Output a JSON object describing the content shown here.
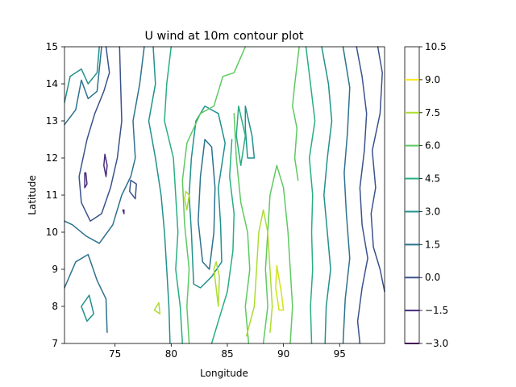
{
  "chart_data": {
    "type": "contour",
    "title": "U wind at 10m contour plot",
    "xlabel": "Longitude",
    "ylabel": "Latitude",
    "xlim": [
      70.5,
      99.0
    ],
    "ylim": [
      7,
      15
    ],
    "xticks": [
      "75",
      "80",
      "85",
      "90",
      "95"
    ],
    "yticks": [
      "7",
      "8",
      "9",
      "10",
      "11",
      "12",
      "13",
      "14",
      "15"
    ],
    "colorbar": {
      "levels": [
        -3.0,
        -1.5,
        0.0,
        1.5,
        3.0,
        4.5,
        6.0,
        7.5,
        9.0,
        10.5
      ],
      "labels": [
        "−3.0",
        "−1.5",
        "0.0",
        "1.5",
        "3.0",
        "4.5",
        "6.0",
        "7.5",
        "9.0",
        "10.5"
      ],
      "colors": [
        "#440154",
        "#472d7b",
        "#3b528b",
        "#2c728e",
        "#21918c",
        "#28ae80",
        "#5ec962",
        "#addc30",
        "#fde725"
      ]
    },
    "contours": [
      {
        "level": -1.5,
        "color": "#472d7b",
        "points": [
          [
            74.1,
            12.1
          ],
          [
            74.3,
            11.8
          ],
          [
            74.2,
            11.5
          ],
          [
            74.0,
            11.8
          ],
          [
            74.1,
            12.1
          ]
        ]
      },
      {
        "level": -1.5,
        "color": "#472d7b",
        "points": [
          [
            72.4,
            11.6
          ],
          [
            72.5,
            11.3
          ],
          [
            72.3,
            11.2
          ],
          [
            72.3,
            11.6
          ],
          [
            72.4,
            11.6
          ]
        ]
      },
      {
        "level": -1.5,
        "color": "#472d7b",
        "points": [
          [
            75.7,
            10.6
          ],
          [
            75.8,
            10.5
          ],
          [
            75.8,
            10.6
          ]
        ]
      },
      {
        "level": 0.0,
        "color": "#3b528b",
        "points": [
          [
            74.2,
            15.0
          ],
          [
            74.5,
            14.3
          ],
          [
            74.0,
            13.8
          ],
          [
            73.2,
            13.2
          ],
          [
            72.5,
            12.5
          ],
          [
            71.8,
            11.5
          ],
          [
            72.0,
            10.8
          ],
          [
            72.8,
            10.3
          ],
          [
            73.8,
            10.5
          ],
          [
            74.6,
            11.2
          ],
          [
            75.2,
            12.0
          ],
          [
            75.6,
            13.0
          ],
          [
            75.5,
            14.0
          ],
          [
            75.4,
            15.0
          ]
        ]
      },
      {
        "level": 0.0,
        "color": "#3b528b",
        "points": [
          [
            96.5,
            15.0
          ],
          [
            97.0,
            14.2
          ],
          [
            97.4,
            13.2
          ],
          [
            97.2,
            12.2
          ],
          [
            96.8,
            11.2
          ],
          [
            97.0,
            10.2
          ],
          [
            97.5,
            9.3
          ],
          [
            97.0,
            8.5
          ],
          [
            96.6,
            7.6
          ],
          [
            96.8,
            7.0
          ]
        ]
      },
      {
        "level": 0.0,
        "color": "#3b528b",
        "points": [
          [
            99.0,
            8.4
          ],
          [
            98.6,
            9.0
          ],
          [
            98.0,
            9.6
          ],
          [
            97.8,
            10.5
          ],
          [
            98.2,
            11.2
          ],
          [
            97.9,
            12.2
          ],
          [
            98.6,
            13.2
          ],
          [
            98.8,
            14.3
          ],
          [
            98.4,
            15.0
          ]
        ]
      },
      {
        "level": 0.0,
        "color": "#3b528b",
        "points": [
          [
            76.3,
            11.1
          ],
          [
            76.8,
            10.9
          ],
          [
            76.9,
            11.3
          ],
          [
            76.4,
            11.4
          ],
          [
            76.3,
            11.1
          ]
        ]
      },
      {
        "level": 1.5,
        "color": "#2c728e",
        "points": [
          [
            70.5,
            12.9
          ],
          [
            71.5,
            13.3
          ],
          [
            72.0,
            14.1
          ],
          [
            72.6,
            13.6
          ],
          [
            73.4,
            13.8
          ],
          [
            73.8,
            15.0
          ]
        ]
      },
      {
        "level": 1.5,
        "color": "#2c728e",
        "points": [
          [
            77.6,
            15.0
          ],
          [
            77.2,
            14.0
          ],
          [
            76.6,
            13.0
          ],
          [
            76.8,
            12.0
          ],
          [
            76.4,
            11.5
          ],
          [
            75.6,
            11.0
          ],
          [
            74.8,
            10.2
          ],
          [
            73.6,
            9.7
          ],
          [
            72.4,
            9.9
          ],
          [
            71.2,
            10.2
          ],
          [
            70.5,
            10.3
          ]
        ]
      },
      {
        "level": 1.5,
        "color": "#2c728e",
        "points": [
          [
            70.5,
            8.5
          ],
          [
            71.5,
            9.2
          ],
          [
            72.6,
            9.4
          ],
          [
            73.4,
            8.7
          ],
          [
            74.2,
            8.2
          ],
          [
            74.3,
            7.3
          ]
        ]
      },
      {
        "level": 1.5,
        "color": "#2c728e",
        "points": [
          [
            95.3,
            15.0
          ],
          [
            95.9,
            13.9
          ],
          [
            95.7,
            12.7
          ],
          [
            95.4,
            11.6
          ],
          [
            95.6,
            10.5
          ],
          [
            95.9,
            9.3
          ],
          [
            95.5,
            8.2
          ],
          [
            95.3,
            7.0
          ]
        ]
      },
      {
        "level": 1.5,
        "color": "#2c728e",
        "points": [
          [
            83.0,
            12.5
          ],
          [
            82.6,
            11.5
          ],
          [
            82.4,
            10.3
          ],
          [
            82.8,
            9.2
          ],
          [
            83.4,
            9.0
          ],
          [
            83.8,
            10.0
          ],
          [
            83.9,
            11.2
          ],
          [
            83.6,
            12.3
          ],
          [
            83.0,
            12.5
          ]
        ]
      },
      {
        "level": 3.0,
        "color": "#21918c",
        "points": [
          [
            78.4,
            15.0
          ],
          [
            78.6,
            14.0
          ],
          [
            78.0,
            13.0
          ],
          [
            78.6,
            12.0
          ],
          [
            79.1,
            11.0
          ],
          [
            79.4,
            10.0
          ],
          [
            79.6,
            9.0
          ],
          [
            79.8,
            8.0
          ],
          [
            79.9,
            7.0
          ]
        ]
      },
      {
        "level": 3.0,
        "color": "#21918c",
        "points": [
          [
            70.5,
            13.5
          ],
          [
            71.0,
            14.2
          ],
          [
            72.0,
            14.4
          ],
          [
            72.6,
            14.0
          ],
          [
            73.4,
            14.3
          ],
          [
            73.6,
            15.0
          ]
        ]
      },
      {
        "level": 3.0,
        "color": "#21918c",
        "points": [
          [
            93.4,
            15.0
          ],
          [
            94.0,
            14.0
          ],
          [
            94.3,
            13.0
          ],
          [
            93.9,
            12.0
          ],
          [
            93.6,
            11.0
          ],
          [
            93.9,
            10.0
          ],
          [
            94.2,
            9.0
          ],
          [
            93.8,
            8.0
          ],
          [
            93.7,
            7.0
          ]
        ]
      },
      {
        "level": 3.0,
        "color": "#21918c",
        "points": [
          [
            82.2,
            13.0
          ],
          [
            81.8,
            12.0
          ],
          [
            81.6,
            11.0
          ],
          [
            81.8,
            10.0
          ],
          [
            82.0,
            8.6
          ],
          [
            82.6,
            8.5
          ],
          [
            83.6,
            8.8
          ],
          [
            84.5,
            9.2
          ],
          [
            84.4,
            10.2
          ],
          [
            84.2,
            11.2
          ],
          [
            84.8,
            12.4
          ],
          [
            84.2,
            13.2
          ],
          [
            83.0,
            13.4
          ],
          [
            82.2,
            13.0
          ]
        ]
      },
      {
        "level": 3.0,
        "color": "#21918c",
        "points": [
          [
            86.6,
            13.4
          ],
          [
            87.2,
            12.6
          ],
          [
            87.4,
            12.0
          ],
          [
            86.8,
            12.0
          ],
          [
            86.6,
            12.8
          ],
          [
            86.6,
            13.4
          ]
        ]
      },
      {
        "level": 3.0,
        "color": "#21918c",
        "points": [
          [
            72.0,
            8.0
          ],
          [
            72.5,
            7.6
          ],
          [
            73.1,
            7.8
          ],
          [
            72.7,
            8.3
          ],
          [
            72.0,
            8.0
          ]
        ]
      },
      {
        "level": 4.5,
        "color": "#28ae80",
        "points": [
          [
            80.0,
            15.0
          ],
          [
            79.6,
            14.0
          ],
          [
            79.4,
            13.0
          ],
          [
            80.2,
            12.0
          ],
          [
            80.4,
            11.0
          ],
          [
            80.6,
            10.0
          ],
          [
            80.4,
            9.0
          ],
          [
            80.8,
            8.0
          ],
          [
            81.0,
            7.0
          ]
        ]
      },
      {
        "level": 4.5,
        "color": "#28ae80",
        "points": [
          [
            92.0,
            15.0
          ],
          [
            92.4,
            14.0
          ],
          [
            92.8,
            13.0
          ],
          [
            92.3,
            12.0
          ],
          [
            92.6,
            11.0
          ],
          [
            92.5,
            10.0
          ],
          [
            92.6,
            9.0
          ],
          [
            92.4,
            8.0
          ],
          [
            92.5,
            7.0
          ]
        ]
      },
      {
        "level": 4.5,
        "color": "#28ae80",
        "points": [
          [
            85.4,
            12.5
          ],
          [
            85.2,
            11.5
          ],
          [
            85.6,
            10.5
          ],
          [
            85.5,
            9.5
          ],
          [
            85.0,
            8.4
          ],
          [
            84.2,
            7.6
          ],
          [
            83.6,
            7.0
          ]
        ]
      },
      {
        "level": 4.5,
        "color": "#28ae80",
        "points": [
          [
            86.0,
            13.4
          ],
          [
            86.6,
            12.6
          ],
          [
            86.2,
            11.8
          ],
          [
            85.8,
            12.6
          ],
          [
            86.0,
            13.4
          ]
        ]
      },
      {
        "level": 6.0,
        "color": "#5ec962",
        "points": [
          [
            86.6,
            15.0
          ],
          [
            85.6,
            14.3
          ],
          [
            84.6,
            14.2
          ],
          [
            83.8,
            13.4
          ],
          [
            82.6,
            13.2
          ],
          [
            81.4,
            12.4
          ],
          [
            81.0,
            11.4
          ],
          [
            81.2,
            10.2
          ],
          [
            81.6,
            9.0
          ],
          [
            81.4,
            8.0
          ],
          [
            81.6,
            7.0
          ]
        ]
      },
      {
        "level": 6.0,
        "color": "#5ec962",
        "points": [
          [
            85.6,
            13.2
          ],
          [
            85.8,
            12.0
          ],
          [
            86.2,
            10.8
          ],
          [
            86.8,
            10.0
          ],
          [
            87.0,
            9.0
          ],
          [
            86.6,
            8.0
          ],
          [
            86.9,
            7.0
          ]
        ]
      },
      {
        "level": 6.0,
        "color": "#5ec962",
        "points": [
          [
            88.2,
            7.0
          ],
          [
            88.6,
            8.0
          ],
          [
            88.4,
            9.0
          ],
          [
            88.6,
            10.0
          ],
          [
            88.8,
            11.0
          ],
          [
            89.4,
            11.8
          ],
          [
            90.0,
            11.2
          ],
          [
            90.4,
            10.0
          ],
          [
            90.6,
            9.0
          ],
          [
            90.8,
            8.0
          ],
          [
            90.6,
            7.0
          ]
        ]
      },
      {
        "level": 6.0,
        "color": "#5ec962",
        "points": [
          [
            91.4,
            15.0
          ],
          [
            91.0,
            14.0
          ],
          [
            90.8,
            13.4
          ],
          [
            91.2,
            12.8
          ],
          [
            91.0,
            12.0
          ],
          [
            91.3,
            11.4
          ]
        ]
      },
      {
        "level": 7.5,
        "color": "#addc30",
        "points": [
          [
            86.7,
            7.2
          ],
          [
            87.4,
            8.0
          ],
          [
            87.6,
            9.0
          ],
          [
            87.8,
            10.0
          ],
          [
            88.2,
            10.6
          ],
          [
            88.6,
            10.0
          ],
          [
            88.8,
            9.0
          ],
          [
            89.0,
            8.0
          ],
          [
            88.8,
            7.3
          ]
        ]
      },
      {
        "level": 7.5,
        "color": "#addc30",
        "points": [
          [
            83.8,
            9.0
          ],
          [
            84.0,
            8.5
          ],
          [
            84.2,
            8.0
          ],
          [
            84.3,
            8.8
          ],
          [
            84.0,
            9.2
          ],
          [
            83.8,
            9.0
          ]
        ]
      },
      {
        "level": 7.5,
        "color": "#addc30",
        "points": [
          [
            81.2,
            10.9
          ],
          [
            81.4,
            10.6
          ],
          [
            81.6,
            11.0
          ],
          [
            81.3,
            11.1
          ],
          [
            81.2,
            10.9
          ]
        ]
      },
      {
        "level": 7.5,
        "color": "#addc30",
        "points": [
          [
            78.5,
            7.9
          ],
          [
            79.0,
            7.8
          ],
          [
            78.9,
            8.1
          ],
          [
            78.5,
            7.9
          ]
        ]
      },
      {
        "level": 9.0,
        "color": "#d2e21b",
        "points": [
          [
            89.4,
            9.1
          ],
          [
            89.8,
            8.4
          ],
          [
            90.0,
            7.9
          ],
          [
            89.6,
            7.9
          ],
          [
            89.3,
            8.5
          ],
          [
            89.4,
            9.1
          ]
        ]
      }
    ]
  }
}
